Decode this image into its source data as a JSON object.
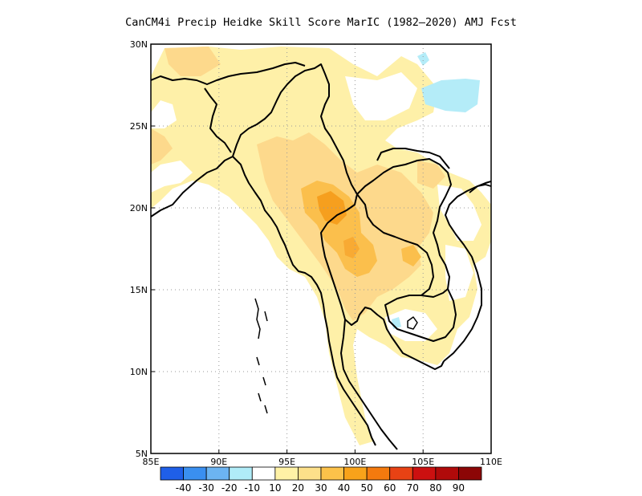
{
  "title": "CanCM4i Precip Heidke Skill Score MarIC (1982–2020) AMJ Fcst",
  "map": {
    "lon_range": [
      85,
      110
    ],
    "lat_range": [
      5,
      30
    ],
    "grid": true,
    "grid_style": "dotted",
    "x_tick_labels": [
      "85E",
      "90E",
      "95E",
      "100E",
      "105E",
      "110E"
    ],
    "y_tick_labels": [
      "5N",
      "10N",
      "15N",
      "20N",
      "25N",
      "30N"
    ]
  },
  "colorbar": {
    "labels": [
      "-40",
      "-30",
      "-20",
      "-10",
      "10",
      "20",
      "30",
      "40",
      "50",
      "60",
      "70",
      "80",
      "90"
    ],
    "colors": [
      "#1f5fe8",
      "#3a8ff0",
      "#6cb4f2",
      "#b0ecf8",
      "#ffffff",
      "#fff2a6",
      "#fde08a",
      "#fcc24a",
      "#f8a21a",
      "#f47a0e",
      "#e84214",
      "#cc1010",
      "#b00a0a",
      "#8c0606"
    ]
  },
  "colors": {
    "skill_10_20": "#fef0a8",
    "skill_20_30": "#fdd98c",
    "skill_30_40": "#fbbf4c",
    "skill_40_50": "#f69f1e",
    "skill_neg_0_10": "#b4ecf8",
    "coastline": "#000000"
  }
}
